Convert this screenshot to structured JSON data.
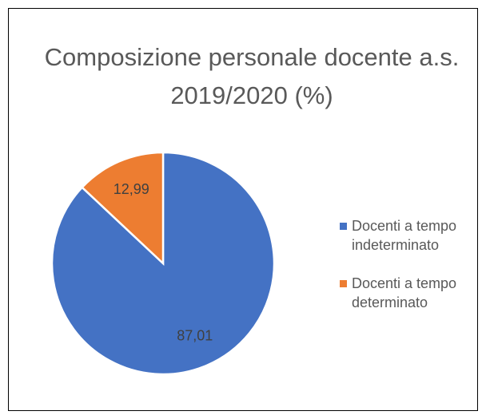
{
  "chart_data": {
    "type": "pie",
    "title": "Composizione personale docente a.s. 2019/2020 (%)",
    "categories": [
      "Docenti a tempo indeterminato",
      "Docenti a tempo determinato"
    ],
    "values": [
      87.01,
      12.99
    ],
    "value_labels": [
      "87,01",
      "12,99"
    ],
    "colors": [
      "#4472c4",
      "#ed7d31"
    ],
    "legend": "right"
  }
}
